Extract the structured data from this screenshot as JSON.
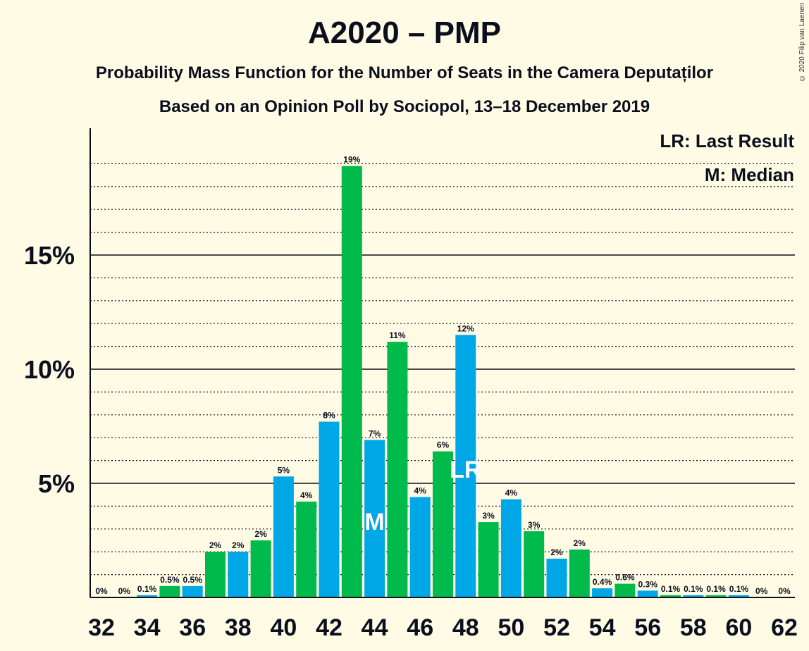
{
  "title": "A2020 – PMP",
  "subtitle1": "Probability Mass Function for the Number of Seats in the Camera Deputaților",
  "subtitle2": "Based on an Opinion Poll by Sociopol, 13–18 December 2019",
  "copyright": "© 2020 Filip van Laenen",
  "colors": {
    "background": "#fffbe5",
    "blue": "#00a7e6",
    "green": "#00bb4b",
    "text": "#0a0f1e"
  },
  "chart_data": {
    "type": "bar",
    "categories": [
      32,
      33,
      34,
      35,
      36,
      37,
      38,
      39,
      40,
      41,
      42,
      43,
      44,
      45,
      46,
      47,
      48,
      49,
      50,
      51,
      52,
      53,
      54,
      55,
      56,
      57,
      58,
      59,
      60,
      61,
      62
    ],
    "values": [
      0,
      0,
      0.1,
      0.5,
      0.5,
      2.0,
      2.0,
      2.5,
      5.3,
      4.2,
      7.7,
      18.9,
      6.9,
      11.2,
      4.4,
      6.4,
      11.5,
      3.3,
      4.3,
      2.9,
      1.7,
      2.1,
      0.4,
      0.6,
      0.3,
      0.1,
      0.1,
      0.1,
      0.1,
      0,
      0
    ],
    "labels": [
      "0%",
      "0%",
      "0.1%",
      "0.5%",
      "0.5%",
      "2%",
      "2%",
      "2%",
      "5%",
      "4%",
      "8%",
      "19%",
      "7%",
      "11%",
      "4%",
      "6%",
      "12%",
      "3%",
      "4%",
      "3%",
      "2%",
      "2%",
      "0.4%",
      "0.6%",
      "0.3%",
      "0.1%",
      "0.1%",
      "0.1%",
      "0.1%",
      "0%",
      "0%"
    ],
    "xticks": [
      "32",
      "34",
      "36",
      "38",
      "40",
      "42",
      "44",
      "46",
      "48",
      "50",
      "52",
      "54",
      "56",
      "58",
      "60",
      "62"
    ],
    "yticks": [
      "5%",
      "10%",
      "15%"
    ],
    "ylim": [
      0,
      20.5
    ],
    "median": 44,
    "last_result": 48,
    "median_marker": "M",
    "last_result_marker": "LR",
    "legend": [
      "LR: Last Result",
      "M: Median"
    ],
    "legend_position": "top-right",
    "grid": true
  }
}
